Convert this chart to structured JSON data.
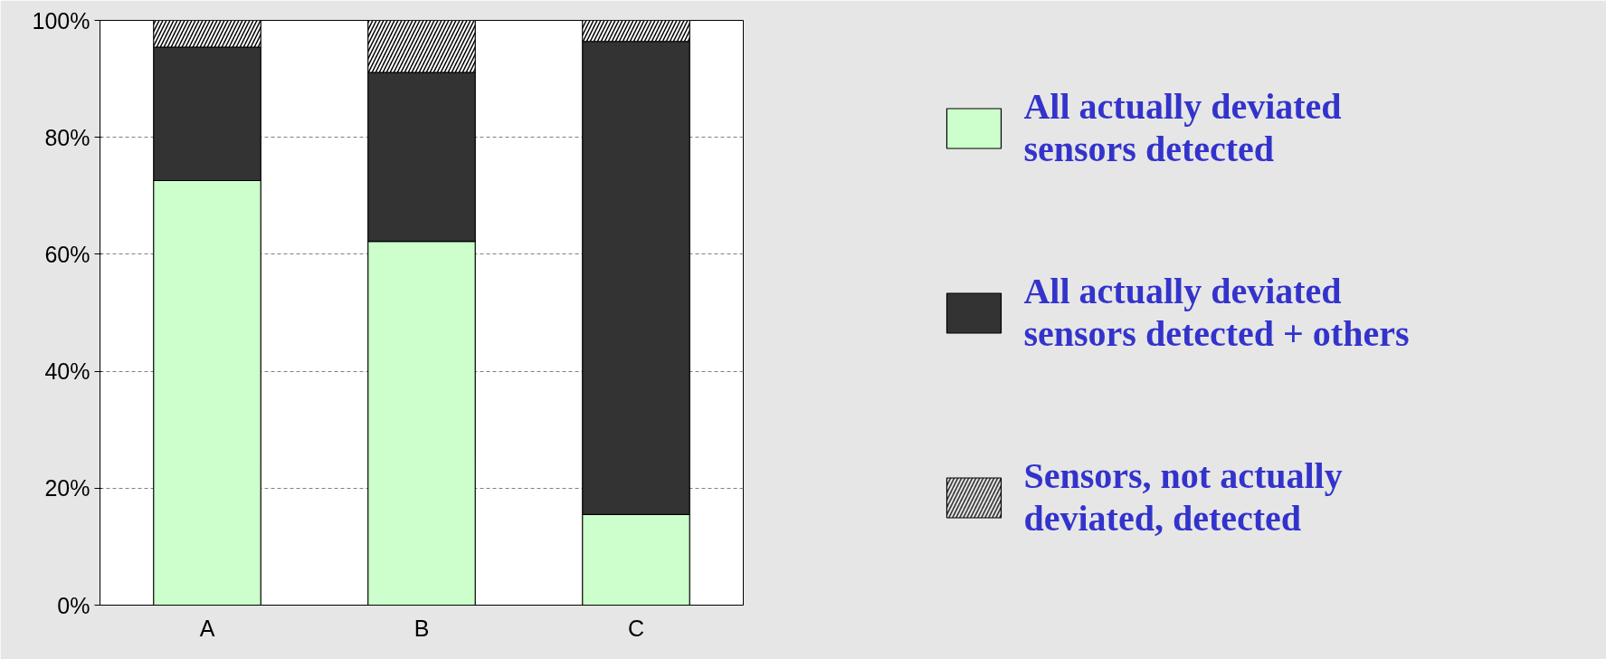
{
  "chart_data": {
    "type": "bar",
    "stacked": true,
    "categories": [
      "A",
      "B",
      "C"
    ],
    "series": [
      {
        "name": "All actually deviated sensors detected",
        "color": "#ccffcc",
        "values": [
          72.6,
          62.2,
          15.5
        ]
      },
      {
        "name": "All actually deviated sensors detected + others",
        "color": "#333333",
        "values": [
          22.8,
          28.9,
          80.9
        ]
      },
      {
        "name": "Sensors, not actually deviated, detected",
        "color": "#ffffff",
        "values": [
          4.6,
          8.9,
          3.6
        ]
      }
    ],
    "ylim": [
      0,
      100
    ],
    "yticks": [
      {
        "value": 0,
        "label": "0%"
      },
      {
        "value": 20,
        "label": "20%"
      },
      {
        "value": 40,
        "label": "40%"
      },
      {
        "value": 60,
        "label": "60%"
      },
      {
        "value": 80,
        "label": "80%"
      },
      {
        "value": 100,
        "label": "100%"
      }
    ],
    "grid": "y",
    "legend": "right"
  }
}
